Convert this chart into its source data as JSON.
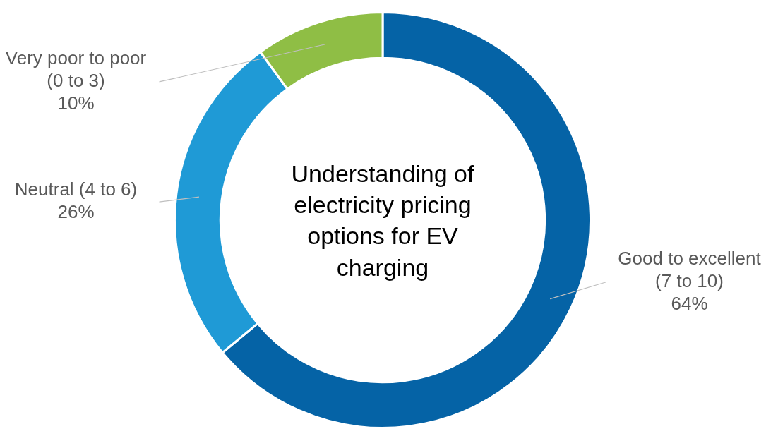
{
  "chart_data": {
    "type": "donut",
    "title": "Understanding of electricity pricing options for EV charging",
    "categories": [
      "Good to excellent (7 to 10)",
      "Neutral (4 to 6)",
      "Very poor to poor (0 to 3)"
    ],
    "values": [
      64,
      26,
      10
    ],
    "colors": [
      "#0563a6",
      "#1f9ad6",
      "#8fbe45"
    ],
    "value_labels": [
      "64%",
      "26%",
      "10%"
    ],
    "legend": false
  }
}
